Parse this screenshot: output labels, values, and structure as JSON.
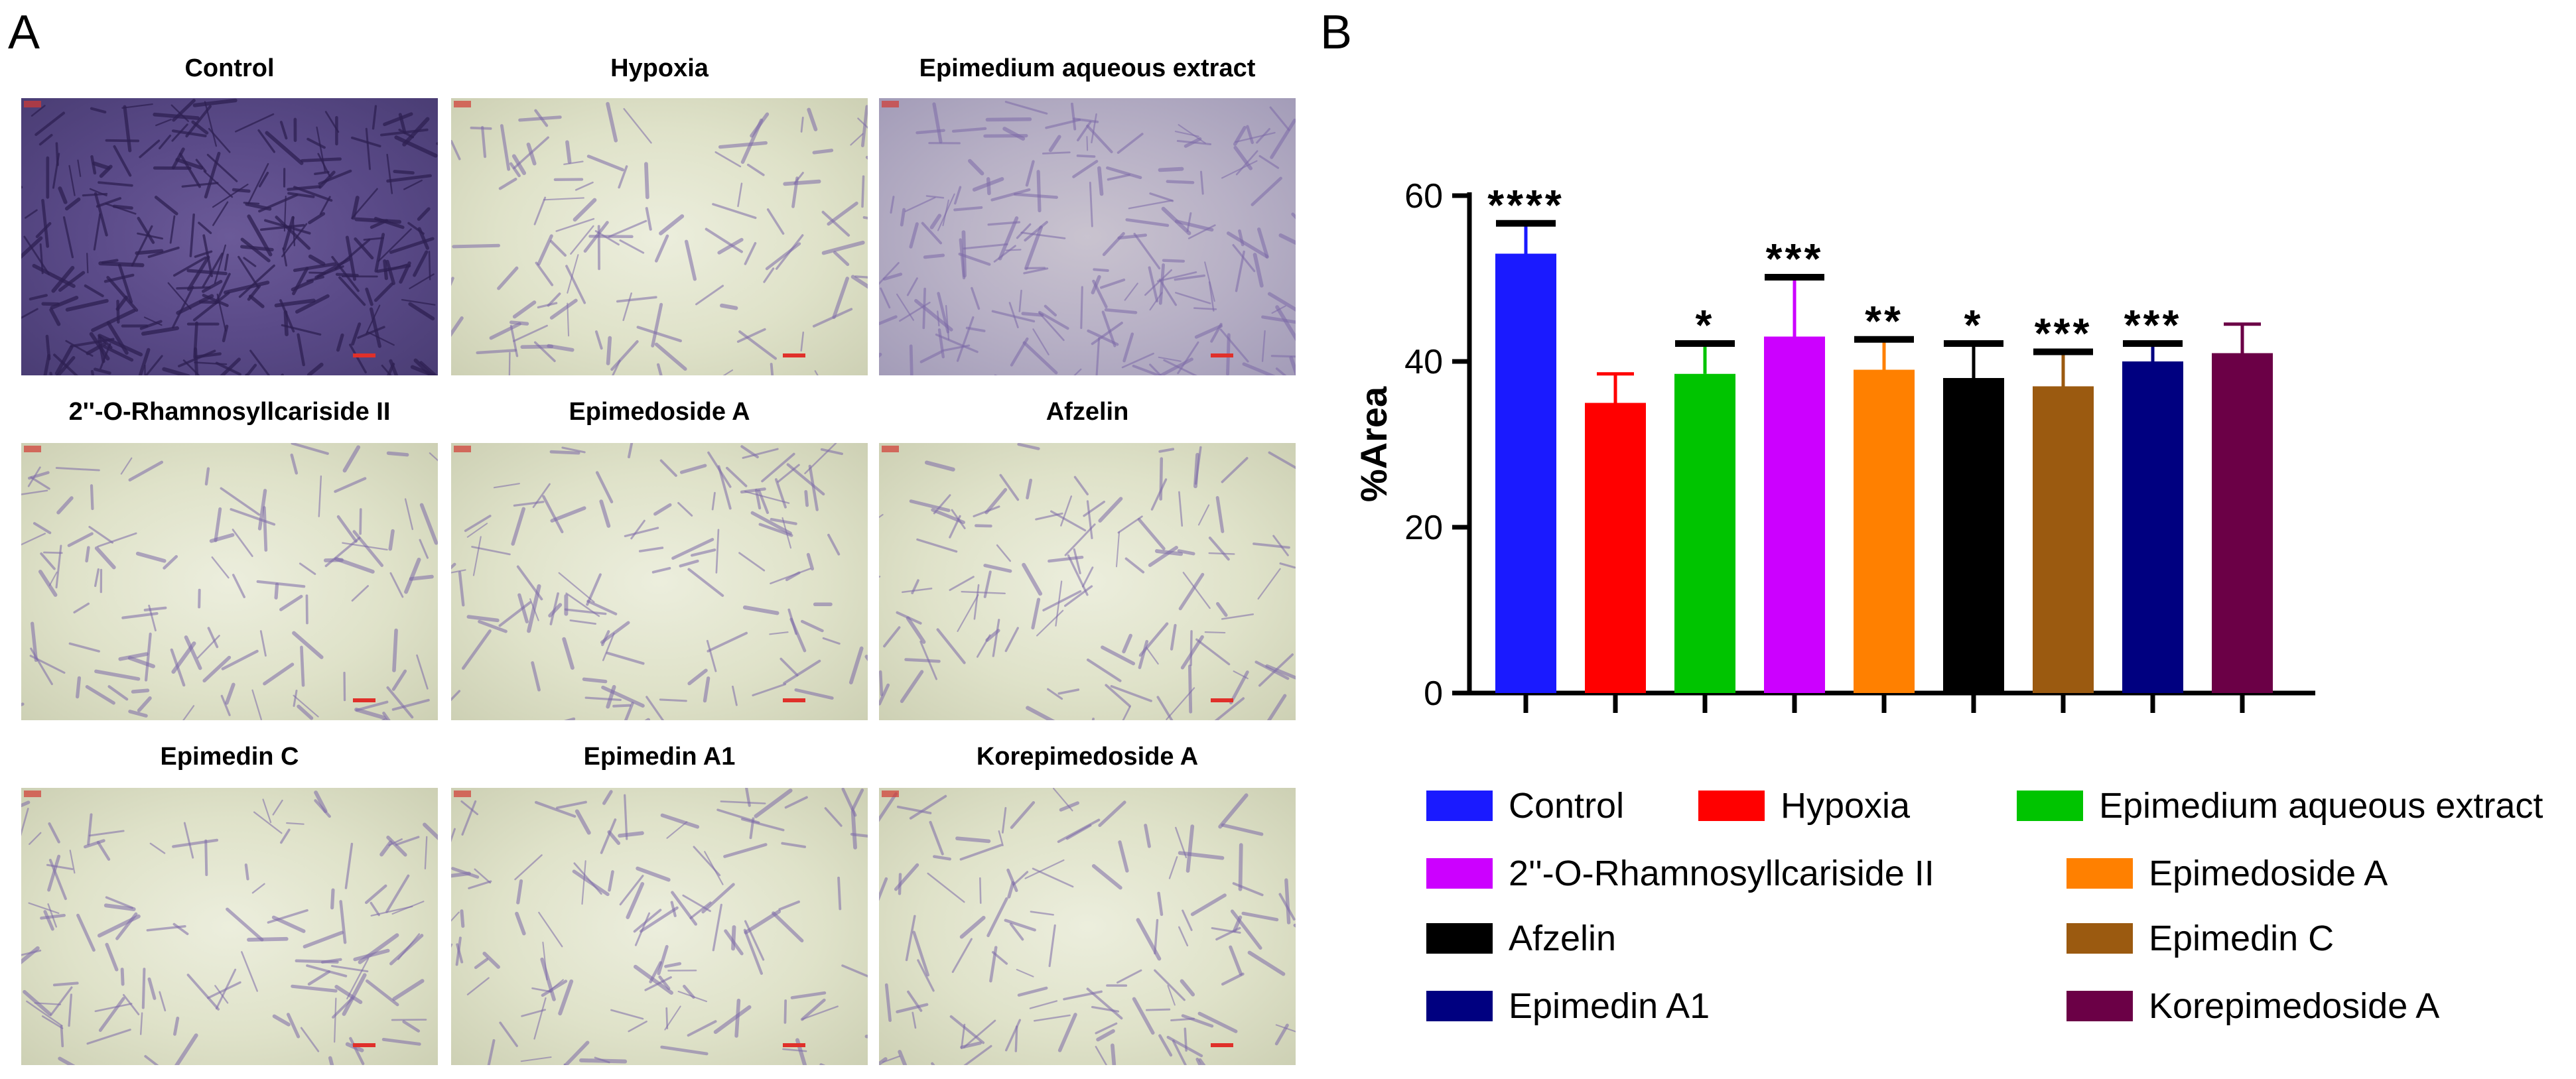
{
  "panel_a": {
    "letter": "A",
    "images": [
      {
        "title": "Control",
        "density": "dense"
      },
      {
        "title": "Hypoxia",
        "density": "sparse"
      },
      {
        "title": "Epimedium aqueous extract",
        "density": "medium"
      },
      {
        "title": "2''-O-Rhamnosyllcariside II",
        "density": "sparse"
      },
      {
        "title": "Epimedoside A",
        "density": "sparse"
      },
      {
        "title": "Afzelin",
        "density": "sparse"
      },
      {
        "title": "Epimedin C",
        "density": "sparse"
      },
      {
        "title": "Epimedin A1",
        "density": "sparse"
      },
      {
        "title": "Korepimedoside A",
        "density": "sparse"
      }
    ]
  },
  "panel_b": {
    "letter": "B"
  },
  "chart_data": {
    "type": "bar",
    "title": "",
    "xlabel": "",
    "ylabel": "%Area",
    "ylim": [
      0,
      60
    ],
    "yticks": [
      "0",
      "20",
      "40",
      "60"
    ],
    "categories": [
      "Control",
      "Hypoxia",
      "Epimedium aqueous extract",
      "2''-O-Rhamnosyllcariside II",
      "Epimedoside A",
      "Afzelin",
      "Epimedin C",
      "Epimedin A1",
      "Korepimedoside A"
    ],
    "values": [
      53,
      35,
      38.5,
      43,
      39,
      38,
      37,
      40,
      41
    ],
    "errors": [
      3.5,
      3.5,
      3.5,
      7,
      3.5,
      4,
      4,
      2,
      3.5
    ],
    "significance": [
      "****",
      "",
      "*",
      "***",
      "**",
      "*",
      "***",
      "***",
      ""
    ],
    "colors": [
      "#1a1aff",
      "#ff0000",
      "#00c400",
      "#cc00ff",
      "#ff8000",
      "#000000",
      "#9b5a10",
      "#000080",
      "#6b0046"
    ],
    "legend_position": "bottom"
  }
}
